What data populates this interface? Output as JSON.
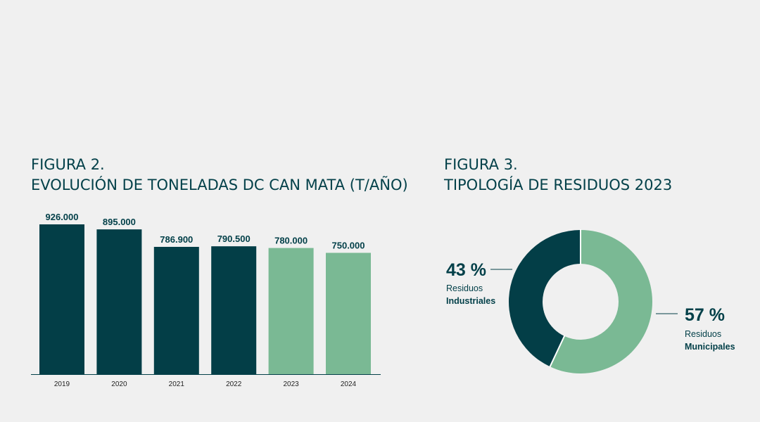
{
  "figures": [
    {
      "label": "FIGURA 2.",
      "title": "EVOLUCIÓN DE TONELADAS DC CAN MATA (T/AÑO)"
    },
    {
      "label": "FIGURA 3.",
      "title": "TIPOLOGÍA DE RESIDUOS 2023"
    }
  ],
  "colors": {
    "dark": "#033e47",
    "light": "#7ab994",
    "axis": "#034049"
  },
  "chart_data": [
    {
      "type": "bar",
      "title": "EVOLUCIÓN DE TONELADAS DC CAN MATA (T/AÑO)",
      "categories": [
        "2019",
        "2020",
        "2021",
        "2022",
        "2023",
        "2024"
      ],
      "values": [
        926000,
        895000,
        786900,
        790500,
        780000,
        750000
      ],
      "value_labels": [
        "926.000",
        "895.000",
        "786.900",
        "790.500",
        "780.000",
        "750.000"
      ],
      "bar_colors": [
        "#033e47",
        "#033e47",
        "#033e47",
        "#033e47",
        "#7ab994",
        "#7ab994"
      ],
      "ylim": [
        0,
        926000
      ],
      "grid": false,
      "legend": "none"
    },
    {
      "type": "pie",
      "title": "TIPOLOGÍA DE RESIDUOS 2023",
      "variant": "donut",
      "slices": [
        {
          "value": 57,
          "pct_label": "57 %",
          "line1": "Residuos",
          "line2": "Municipales",
          "color": "#7ab994"
        },
        {
          "value": 43,
          "pct_label": "43 %",
          "line1": "Residuos",
          "line2": "Industriales",
          "color": "#033e47"
        }
      ]
    }
  ]
}
